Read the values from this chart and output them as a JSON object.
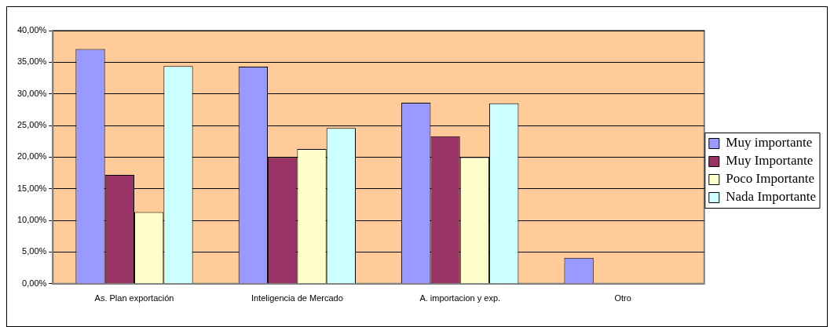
{
  "chart_data": {
    "type": "bar",
    "categories": [
      "As. Plan exportación",
      "Inteligencia de Mercado",
      "A. importacion y exp.",
      "Otro"
    ],
    "series": [
      {
        "name": "Muy importante",
        "color": "#9999ff",
        "values": [
          37.1,
          34.3,
          28.6,
          4.1
        ]
      },
      {
        "name": "Muy Importante",
        "color": "#993366",
        "values": [
          17.2,
          20.0,
          23.3,
          null
        ]
      },
      {
        "name": "Poco Importante",
        "color": "#ffffcc",
        "values": [
          11.3,
          21.3,
          20.0,
          null
        ]
      },
      {
        "name": "Nada Importante",
        "color": "#ccffff",
        "values": [
          34.4,
          24.6,
          28.5,
          null
        ]
      }
    ],
    "ylim": [
      0,
      40
    ],
    "yticks": [
      {
        "value": 0,
        "label": "0,00%"
      },
      {
        "value": 5,
        "label": "5,00%"
      },
      {
        "value": 10,
        "label": "10,00%"
      },
      {
        "value": 15,
        "label": "15,00%"
      },
      {
        "value": 20,
        "label": "20,00%"
      },
      {
        "value": 25,
        "label": "25,00%"
      },
      {
        "value": 30,
        "label": "30,00%"
      },
      {
        "value": 35,
        "label": "35,00%"
      },
      {
        "value": 40,
        "label": "40,00%"
      }
    ],
    "grid": "y",
    "legend": "right"
  }
}
